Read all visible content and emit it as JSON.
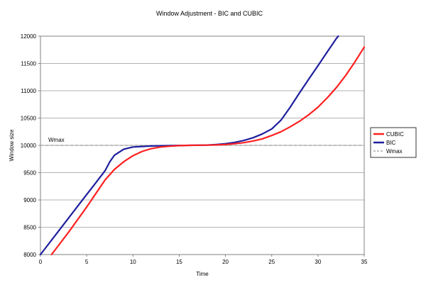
{
  "chart_data": {
    "type": "line",
    "title": "Window Adjustment - BIC and CUBIC",
    "xlabel": "Time",
    "ylabel": "Window size",
    "xlim": [
      0,
      35
    ],
    "ylim": [
      8000,
      12000
    ],
    "x_ticks": [
      "0",
      "5",
      "10",
      "15",
      "20",
      "25",
      "30",
      "35"
    ],
    "y_ticks": [
      "8000",
      "8500",
      "9000",
      "9500",
      "10000",
      "10500",
      "11000",
      "11500",
      "12000"
    ],
    "grid": "horizontal",
    "legend_position": "right",
    "annotation": "Wmax",
    "series": [
      {
        "name": "CUBIC",
        "color": "#ff2020",
        "style": "solid",
        "points": [
          [
            1.2,
            8000
          ],
          [
            3,
            8400
          ],
          [
            5,
            8870
          ],
          [
            7,
            9370
          ],
          [
            8,
            9560
          ],
          [
            9,
            9700
          ],
          [
            10,
            9810
          ],
          [
            11,
            9890
          ],
          [
            12,
            9940
          ],
          [
            13,
            9970
          ],
          [
            14,
            9985
          ],
          [
            15,
            9995
          ],
          [
            16,
            10000
          ],
          [
            17,
            10002
          ],
          [
            18,
            10004
          ],
          [
            19,
            10008
          ],
          [
            20,
            10015
          ],
          [
            21,
            10030
          ],
          [
            22,
            10050
          ],
          [
            23,
            10080
          ],
          [
            24,
            10120
          ],
          [
            25,
            10180
          ],
          [
            26,
            10250
          ],
          [
            27,
            10340
          ],
          [
            28,
            10440
          ],
          [
            29,
            10560
          ],
          [
            30,
            10700
          ],
          [
            31,
            10870
          ],
          [
            32,
            11060
          ],
          [
            33,
            11280
          ],
          [
            34,
            11530
          ],
          [
            35,
            11800
          ]
        ]
      },
      {
        "name": "BIC",
        "color": "#1f1f9e",
        "style": "solid",
        "points": [
          [
            0,
            8000
          ],
          [
            2,
            8440
          ],
          [
            4,
            8880
          ],
          [
            6,
            9320
          ],
          [
            7,
            9540
          ],
          [
            7.5,
            9700
          ],
          [
            8,
            9820
          ],
          [
            9,
            9930
          ],
          [
            10,
            9970
          ],
          [
            12,
            9988
          ],
          [
            14,
            9995
          ],
          [
            16,
            10000
          ],
          [
            18,
            10005
          ],
          [
            19,
            10015
          ],
          [
            20,
            10030
          ],
          [
            21,
            10055
          ],
          [
            22,
            10090
          ],
          [
            23,
            10140
          ],
          [
            24,
            10210
          ],
          [
            25,
            10300
          ],
          [
            26,
            10460
          ],
          [
            27,
            10700
          ],
          [
            28,
            10960
          ],
          [
            29,
            11210
          ],
          [
            30,
            11460
          ],
          [
            31,
            11710
          ],
          [
            32,
            11960
          ],
          [
            32.2,
            12000
          ]
        ]
      },
      {
        "name": "Wmax",
        "color": "#9a9a9a",
        "style": "dashed",
        "points": [
          [
            0,
            10000
          ],
          [
            35,
            10000
          ]
        ]
      }
    ]
  }
}
